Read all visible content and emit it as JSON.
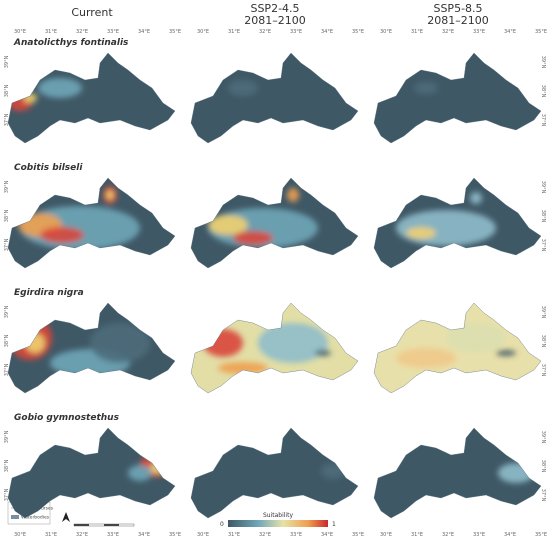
{
  "columns": [
    {
      "title": "Current"
    },
    {
      "title": "SSP2-4.5",
      "subtitle": "2081–2100"
    },
    {
      "title": "SSP5-8.5",
      "subtitle": "2081–2100"
    }
  ],
  "species": [
    "Anatolicthys fontinalis",
    "Cobitis bilseli",
    "Egirdira nigra",
    "Gobio gymnostethus"
  ],
  "longitude_labels": [
    "30°E",
    "31°E",
    "32°E",
    "33°E",
    "34°E",
    "35°E"
  ],
  "latitude_labels": [
    "39°N",
    "38°N",
    "37°N"
  ],
  "legend": {
    "items": [
      "Water courses",
      "Waterbodies"
    ],
    "colorbar_title": "Suitability",
    "colorbar_min": 0,
    "colorbar_max": 1
  }
}
